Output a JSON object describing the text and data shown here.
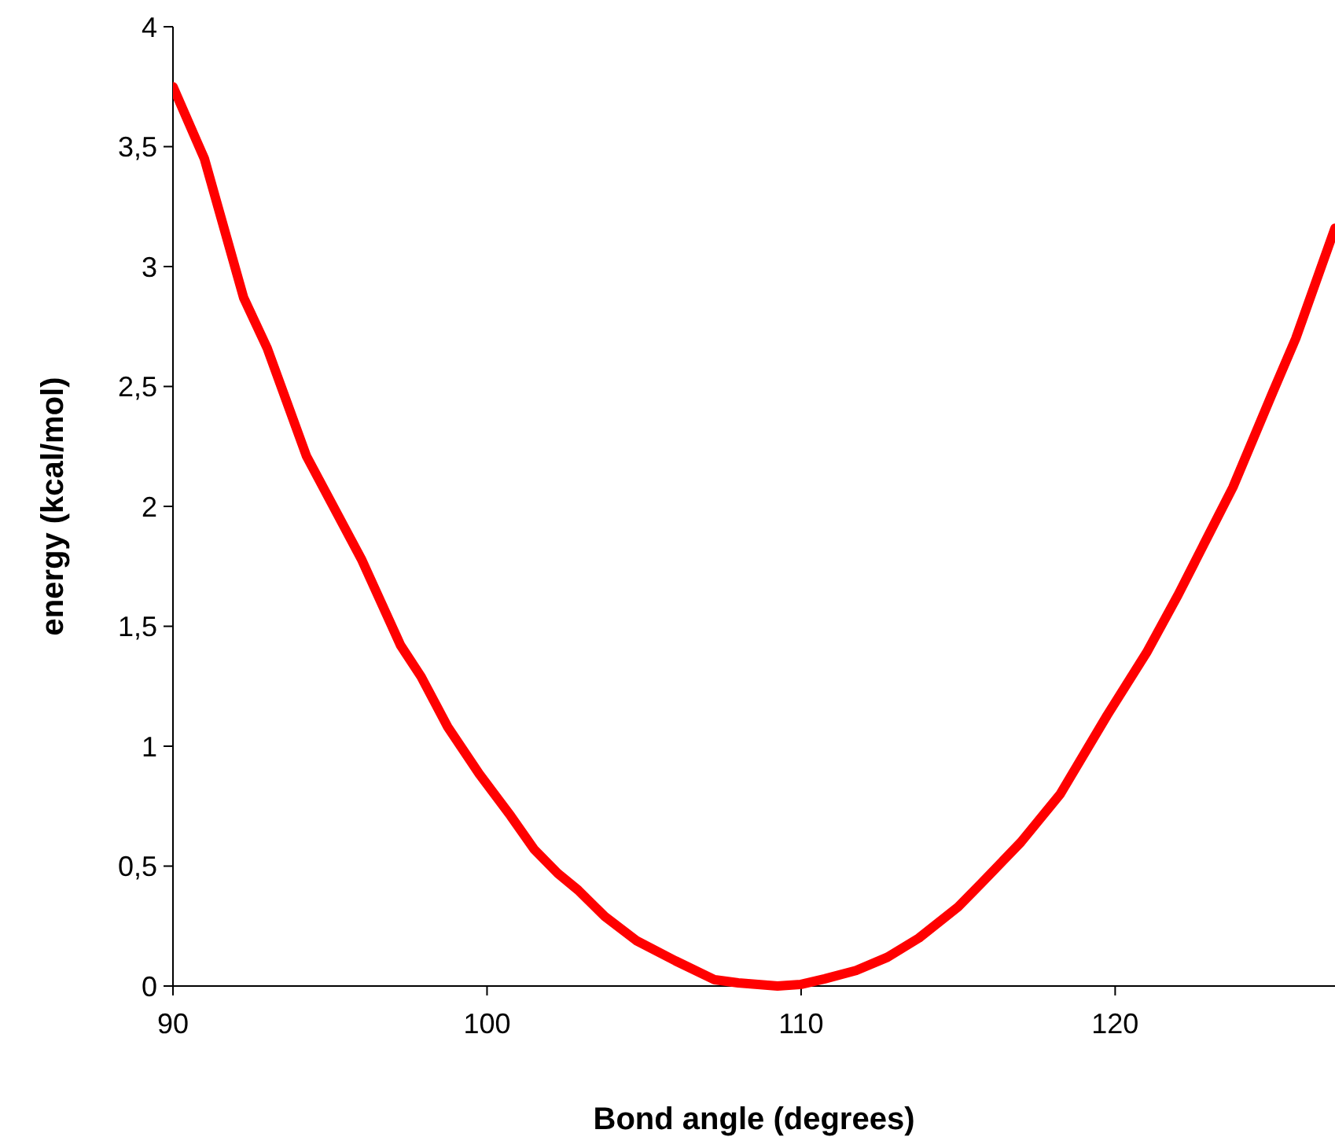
{
  "chart_data": {
    "type": "line",
    "xlabel": "Bond angle (degrees)",
    "ylabel": "energy (kcal/mol)",
    "xlim": [
      90,
      127
    ],
    "ylim": [
      0,
      4
    ],
    "xticks": [
      90,
      100,
      110,
      120
    ],
    "yticks": [
      0,
      {
        "value": 0.5,
        "label": "0,5"
      },
      1,
      {
        "value": 1.5,
        "label": "1,5"
      },
      2,
      {
        "value": 2.5,
        "label": "2,5"
      },
      3,
      {
        "value": 3.5,
        "label": "3,5"
      },
      4
    ],
    "grid": false,
    "marker": "none",
    "line_style": "solid",
    "series": [
      {
        "color": "#ff0000",
        "x": [
          90,
          91,
          92.25,
          93,
          94.25,
          96,
          97.25,
          97.9,
          98.75,
          99.75,
          100.75,
          101.5,
          102.25,
          102.9,
          103.75,
          104.75,
          106,
          107.25,
          108,
          109.25,
          110,
          110.75,
          111.75,
          112.75,
          113.75,
          115,
          115.75,
          117,
          118.25,
          119.75,
          121,
          122,
          123.75,
          125,
          125.75,
          127
        ],
        "values": [
          3.75,
          3.45,
          2.87,
          2.66,
          2.21,
          1.78,
          1.42,
          1.29,
          1.08,
          0.885,
          0.71,
          0.57,
          0.47,
          0.4,
          0.29,
          0.19,
          0.105,
          0.026,
          0.013,
          0,
          0.007,
          0.03,
          0.065,
          0.12,
          0.2,
          0.33,
          0.43,
          0.6,
          0.8,
          1.13,
          1.39,
          1.63,
          2.08,
          2.47,
          2.7,
          3.16
        ]
      }
    ]
  }
}
